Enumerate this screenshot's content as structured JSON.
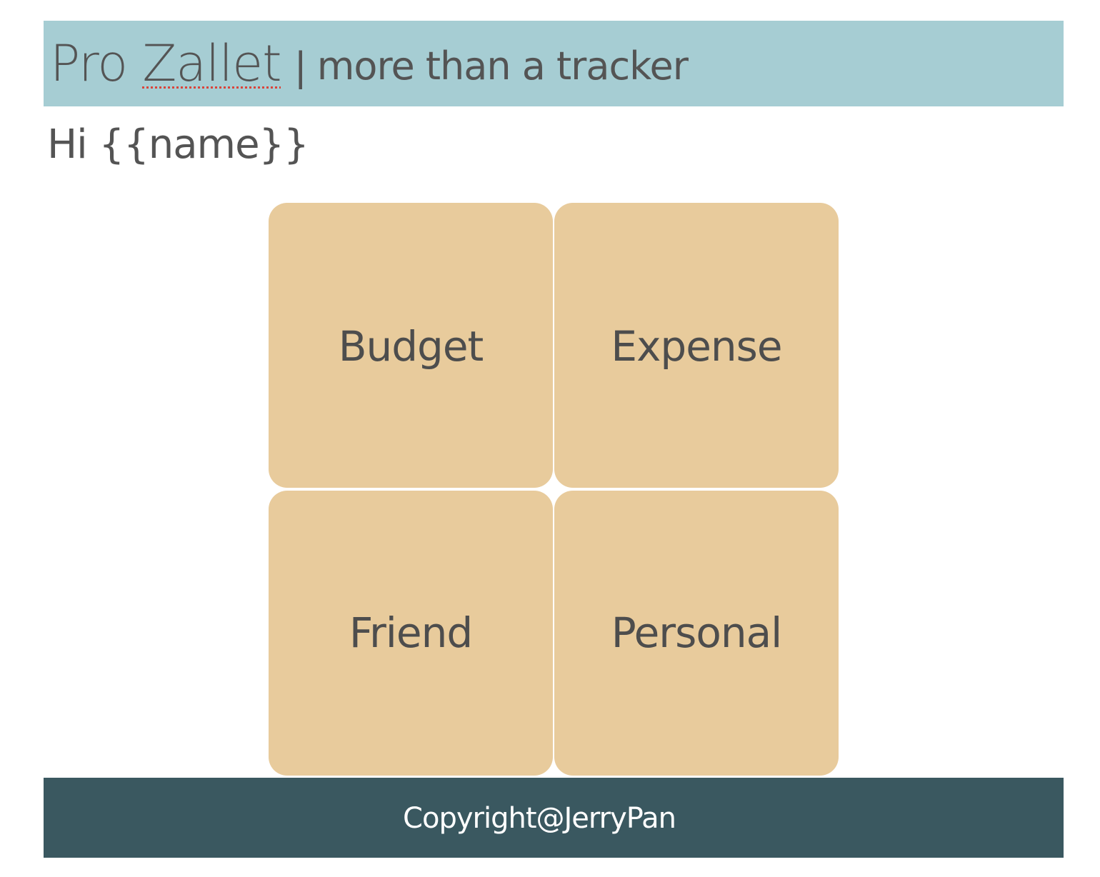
{
  "header": {
    "brand_word_1": "Pro",
    "brand_word_2": "Zallet",
    "separator": "|",
    "tagline": "more than a tracker"
  },
  "greeting": "Hi {{name}}",
  "tiles": [
    {
      "label": "Budget"
    },
    {
      "label": "Expense"
    },
    {
      "label": "Friend"
    },
    {
      "label": "Personal"
    }
  ],
  "footer": {
    "copyright": "Copyright@JerryPan"
  },
  "colors": {
    "header_bg": "#a6cdd3",
    "tile_bg": "#e8cb9c",
    "footer_bg": "#3a5860",
    "text": "#545454",
    "spellcheck_underline": "#d9453b"
  }
}
